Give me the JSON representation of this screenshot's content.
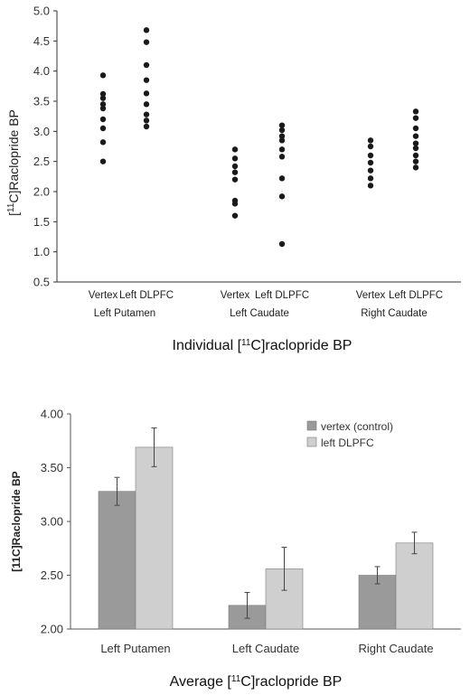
{
  "chart_data": [
    {
      "type": "scatter",
      "ylabel_parts": [
        "[",
        "11",
        "C]Raclopride BP"
      ],
      "caption_parts": [
        "Individual [",
        "11",
        "C]raclopride BP"
      ],
      "ylim": [
        0.5,
        5.0
      ],
      "yticks": [
        "0.5",
        "1.0",
        "1.5",
        "2.0",
        "2.5",
        "3.0",
        "3.5",
        "4.0",
        "4.5",
        "5.0"
      ],
      "grid": false,
      "groups": [
        {
          "name": "Left Putamen",
          "columns": [
            {
              "label": "Vertex",
              "values": [
                3.93,
                3.62,
                3.55,
                3.45,
                3.38,
                3.2,
                3.05,
                2.82,
                2.5
              ]
            },
            {
              "label": "Left DLPFC",
              "values": [
                4.68,
                4.48,
                4.1,
                3.85,
                3.63,
                3.45,
                3.28,
                3.18,
                3.08
              ]
            }
          ]
        },
        {
          "name": "Left Caudate",
          "columns": [
            {
              "label": "Vertex",
              "values": [
                2.7,
                2.55,
                2.42,
                2.32,
                2.2,
                1.85,
                1.8,
                1.6
              ]
            },
            {
              "label": "Left DLPFC",
              "values": [
                3.1,
                3.02,
                2.92,
                2.85,
                2.7,
                2.58,
                2.22,
                1.92,
                1.13
              ]
            }
          ]
        },
        {
          "name": "Right Caudate",
          "columns": [
            {
              "label": "Vertex",
              "values": [
                2.85,
                2.75,
                2.6,
                2.48,
                2.35,
                2.22,
                2.1
              ]
            },
            {
              "label": "Left DLPFC",
              "values": [
                3.33,
                3.22,
                3.05,
                2.92,
                2.8,
                2.72,
                2.6,
                2.5,
                2.4
              ]
            }
          ]
        }
      ]
    },
    {
      "type": "bar",
      "categories": [
        "Left Putamen",
        "Left Caudate",
        "Right Caudate"
      ],
      "ylabel": "[11C]Raclopride BP",
      "caption_parts": [
        "Average [",
        "11",
        "C]raclopride BP"
      ],
      "ylim": [
        2.0,
        4.0
      ],
      "yticks": [
        "2.00",
        "2.50",
        "3.00",
        "3.50",
        "4.00"
      ],
      "grid": false,
      "legend_position": "top-right",
      "series": [
        {
          "name": "vertex (control)",
          "color": "#9a9a9a",
          "values": [
            3.28,
            2.22,
            2.5
          ],
          "errors": [
            0.13,
            0.12,
            0.08
          ]
        },
        {
          "name": "left DLPFC",
          "color": "#cfcfcf",
          "values": [
            3.69,
            2.56,
            2.8
          ],
          "errors": [
            0.18,
            0.2,
            0.1
          ]
        }
      ]
    }
  ]
}
